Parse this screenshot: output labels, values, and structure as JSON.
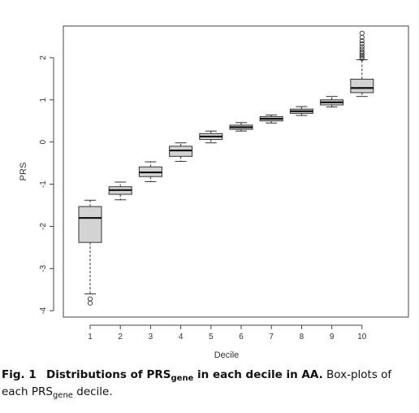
{
  "chart_data": {
    "type": "box",
    "xlabel": "Decile",
    "ylabel": "PRS",
    "ylim": [
      -4.15,
      2.75
    ],
    "yticks": [
      -4,
      -3,
      -2,
      -1,
      0,
      1,
      2
    ],
    "ytick_labels": [
      "-4",
      "-3",
      "-2",
      "-1",
      "0",
      "1",
      "2"
    ],
    "categories": [
      "1",
      "2",
      "3",
      "4",
      "5",
      "6",
      "7",
      "8",
      "9",
      "10"
    ],
    "box_fill": "#d3d3d3",
    "boxes": [
      {
        "category": "1",
        "whisker_low": -3.6,
        "q1": -2.38,
        "median": -1.8,
        "q3": -1.53,
        "whisker_high": -1.38,
        "outliers": [
          -3.72,
          -3.82
        ]
      },
      {
        "category": "2",
        "whisker_low": -1.37,
        "q1": -1.24,
        "median": -1.14,
        "q3": -1.06,
        "whisker_high": -0.95,
        "outliers": []
      },
      {
        "category": "3",
        "whisker_low": -0.94,
        "q1": -0.82,
        "median": -0.72,
        "q3": -0.59,
        "whisker_high": -0.47,
        "outliers": []
      },
      {
        "category": "4",
        "whisker_low": -0.46,
        "q1": -0.34,
        "median": -0.2,
        "q3": -0.1,
        "whisker_high": -0.02,
        "outliers": []
      },
      {
        "category": "5",
        "whisker_low": -0.02,
        "q1": 0.06,
        "median": 0.13,
        "q3": 0.2,
        "whisker_high": 0.26,
        "outliers": []
      },
      {
        "category": "6",
        "whisker_low": 0.26,
        "q1": 0.3,
        "median": 0.35,
        "q3": 0.4,
        "whisker_high": 0.46,
        "outliers": []
      },
      {
        "category": "7",
        "whisker_low": 0.45,
        "q1": 0.5,
        "median": 0.55,
        "q3": 0.6,
        "whisker_high": 0.64,
        "outliers": []
      },
      {
        "category": "8",
        "whisker_low": 0.63,
        "q1": 0.68,
        "median": 0.73,
        "q3": 0.78,
        "whisker_high": 0.84,
        "outliers": []
      },
      {
        "category": "9",
        "whisker_low": 0.83,
        "q1": 0.88,
        "median": 0.94,
        "q3": 1.0,
        "whisker_high": 1.08,
        "outliers": []
      },
      {
        "category": "10",
        "whisker_low": 1.08,
        "q1": 1.17,
        "median": 1.28,
        "q3": 1.49,
        "whisker_high": 1.95,
        "outliers": [
          1.98,
          2.02,
          2.06,
          2.1,
          2.14,
          2.2,
          2.26,
          2.33,
          2.4,
          2.48,
          2.58
        ]
      }
    ]
  },
  "caption": {
    "fig_label": "Fig. 1",
    "title_pre": "Distributions of PRS",
    "title_sub": "gene",
    "title_post": " in each decile in AA.",
    "body_pre": " Box-plots of each PRS",
    "body_sub": "gene",
    "body_post": " decile."
  }
}
